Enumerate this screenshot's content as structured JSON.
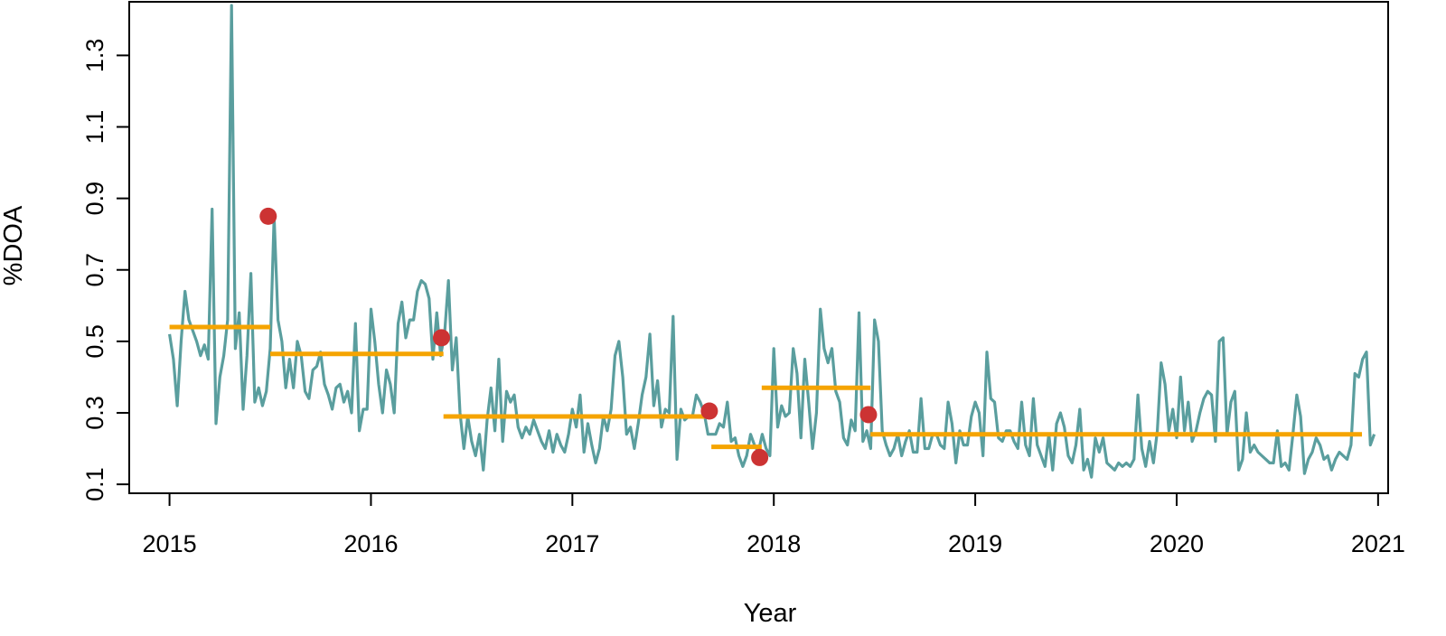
{
  "chart_data": {
    "type": "line",
    "title": "",
    "xlabel": "Year",
    "ylabel": "%DOA",
    "xlim": [
      2014.8,
      2021.05
    ],
    "ylim": [
      0.075,
      1.45
    ],
    "x_ticks": [
      2015,
      2016,
      2017,
      2018,
      2019,
      2020,
      2021
    ],
    "x_tick_labels": [
      "2015",
      "2016",
      "2017",
      "2018",
      "2019",
      "2020",
      "2021"
    ],
    "y_ticks": [
      0.1,
      0.3,
      0.5,
      0.7,
      0.9,
      1.1,
      1.3
    ],
    "y_tick_labels": [
      "0.1",
      "0.3",
      "0.5",
      "0.7",
      "0.9",
      "1.1",
      "1.3"
    ],
    "grid": false,
    "colors": {
      "series": "#5a9e9e",
      "segments": "#f5a400",
      "changepoints": "#cc3333"
    },
    "series": {
      "start": 2015.0,
      "step": 0.019231,
      "values": [
        0.52,
        0.45,
        0.32,
        0.5,
        0.64,
        0.56,
        0.53,
        0.5,
        0.46,
        0.49,
        0.45,
        0.87,
        0.27,
        0.4,
        0.46,
        0.56,
        1.44,
        0.48,
        0.58,
        0.31,
        0.46,
        0.69,
        0.33,
        0.37,
        0.32,
        0.36,
        0.48,
        0.85,
        0.56,
        0.5,
        0.37,
        0.45,
        0.37,
        0.5,
        0.46,
        0.36,
        0.34,
        0.42,
        0.43,
        0.47,
        0.38,
        0.35,
        0.31,
        0.37,
        0.38,
        0.33,
        0.36,
        0.3,
        0.55,
        0.25,
        0.31,
        0.31,
        0.59,
        0.5,
        0.38,
        0.3,
        0.42,
        0.38,
        0.3,
        0.55,
        0.61,
        0.51,
        0.56,
        0.56,
        0.64,
        0.67,
        0.66,
        0.62,
        0.45,
        0.58,
        0.46,
        0.52,
        0.67,
        0.42,
        0.51,
        0.3,
        0.2,
        0.29,
        0.22,
        0.18,
        0.24,
        0.14,
        0.28,
        0.37,
        0.25,
        0.45,
        0.22,
        0.36,
        0.33,
        0.35,
        0.26,
        0.23,
        0.26,
        0.24,
        0.28,
        0.25,
        0.22,
        0.2,
        0.25,
        0.19,
        0.24,
        0.21,
        0.19,
        0.24,
        0.31,
        0.26,
        0.35,
        0.19,
        0.27,
        0.21,
        0.16,
        0.2,
        0.29,
        0.25,
        0.31,
        0.46,
        0.5,
        0.4,
        0.24,
        0.26,
        0.2,
        0.27,
        0.35,
        0.4,
        0.52,
        0.32,
        0.39,
        0.26,
        0.31,
        0.3,
        0.57,
        0.17,
        0.31,
        0.28,
        0.29,
        0.29,
        0.35,
        0.33,
        0.3,
        0.24,
        0.24,
        0.24,
        0.27,
        0.26,
        0.33,
        0.22,
        0.23,
        0.18,
        0.15,
        0.18,
        0.24,
        0.21,
        0.19,
        0.24,
        0.2,
        0.18,
        0.48,
        0.26,
        0.32,
        0.29,
        0.3,
        0.48,
        0.41,
        0.23,
        0.45,
        0.33,
        0.2,
        0.3,
        0.59,
        0.48,
        0.44,
        0.48,
        0.36,
        0.33,
        0.23,
        0.21,
        0.28,
        0.25,
        0.58,
        0.22,
        0.25,
        0.2,
        0.56,
        0.5,
        0.25,
        0.21,
        0.18,
        0.2,
        0.24,
        0.18,
        0.22,
        0.25,
        0.19,
        0.19,
        0.34,
        0.2,
        0.2,
        0.24,
        0.24,
        0.21,
        0.2,
        0.33,
        0.27,
        0.16,
        0.25,
        0.21,
        0.21,
        0.29,
        0.33,
        0.3,
        0.18,
        0.47,
        0.34,
        0.33,
        0.23,
        0.22,
        0.25,
        0.25,
        0.22,
        0.2,
        0.33,
        0.21,
        0.18,
        0.34,
        0.21,
        0.18,
        0.15,
        0.24,
        0.14,
        0.27,
        0.3,
        0.26,
        0.18,
        0.16,
        0.21,
        0.31,
        0.14,
        0.17,
        0.12,
        0.23,
        0.19,
        0.23,
        0.16,
        0.15,
        0.14,
        0.16,
        0.15,
        0.16,
        0.15,
        0.17,
        0.35,
        0.2,
        0.15,
        0.22,
        0.16,
        0.25,
        0.44,
        0.38,
        0.25,
        0.31,
        0.23,
        0.4,
        0.25,
        0.33,
        0.22,
        0.25,
        0.3,
        0.34,
        0.36,
        0.35,
        0.22,
        0.5,
        0.51,
        0.24,
        0.33,
        0.36,
        0.14,
        0.17,
        0.3,
        0.19,
        0.21,
        0.19,
        0.18,
        0.17,
        0.16,
        0.16,
        0.25,
        0.15,
        0.16,
        0.14,
        0.24,
        0.35,
        0.29,
        0.13,
        0.17,
        0.19,
        0.23,
        0.21,
        0.17,
        0.18,
        0.14,
        0.17,
        0.19,
        0.18,
        0.17,
        0.21,
        0.41,
        0.4,
        0.45,
        0.47,
        0.21,
        0.24
      ]
    },
    "segments": [
      {
        "x_start": 2015.0,
        "x_end": 2015.5,
        "mean": 0.54
      },
      {
        "x_start": 2015.5,
        "x_end": 2016.36,
        "mean": 0.465
      },
      {
        "x_start": 2016.36,
        "x_end": 2017.69,
        "mean": 0.29
      },
      {
        "x_start": 2017.69,
        "x_end": 2017.94,
        "mean": 0.205
      },
      {
        "x_start": 2017.94,
        "x_end": 2018.48,
        "mean": 0.37
      },
      {
        "x_start": 2018.48,
        "x_end": 2020.92,
        "mean": 0.24
      }
    ],
    "changepoints": [
      {
        "x": 2015.49,
        "y": 0.85
      },
      {
        "x": 2016.35,
        "y": 0.51
      },
      {
        "x": 2017.68,
        "y": 0.305
      },
      {
        "x": 2017.93,
        "y": 0.175
      },
      {
        "x": 2018.47,
        "y": 0.295
      }
    ]
  }
}
